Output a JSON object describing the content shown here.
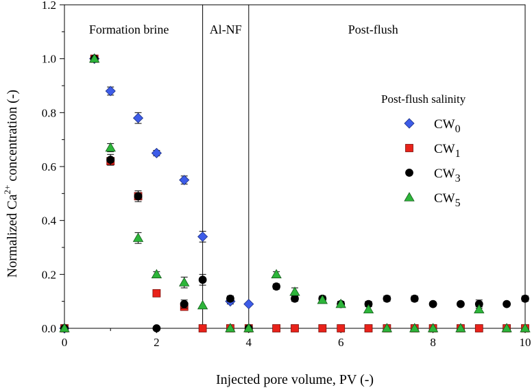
{
  "chart_data": {
    "type": "scatter",
    "title": "",
    "xlabel": "Injected pore volume, PV (-)",
    "ylabel": {
      "prefix": "Normalized Ca",
      "superscript": "2+",
      "suffix": " concentration (-)"
    },
    "xlim": [
      0,
      10
    ],
    "ylim": [
      0,
      1.2
    ],
    "xticks": [
      0,
      2,
      4,
      6,
      8,
      10
    ],
    "yticks": [
      0.0,
      0.2,
      0.4,
      0.6,
      0.8,
      1.0,
      1.2
    ],
    "ytick_labels": [
      "0.0",
      "0.2",
      "0.4",
      "0.6",
      "0.8",
      "1.0",
      "1.2"
    ],
    "region_dividers_pv": [
      3,
      4
    ],
    "regions": [
      {
        "label": "Formation brine",
        "x_center": 1.4
      },
      {
        "label": "Al-NF",
        "x_center": 3.5
      },
      {
        "label": "Post-flush",
        "x_center": 6.7
      }
    ],
    "legend": {
      "title": "Post-flush salinity",
      "position": "right-center"
    },
    "series": [
      {
        "name": "CW",
        "sub": "0",
        "marker": "diamond",
        "color": "#3d5ce8",
        "x": [
          0,
          0.65,
          1,
          1.6,
          2,
          2.6,
          3,
          3.6,
          4
        ],
        "y": [
          0,
          1.0,
          0.88,
          0.78,
          0.65,
          0.55,
          0.34,
          0.1,
          0.09
        ],
        "err": [
          0,
          0,
          0.015,
          0.02,
          0.01,
          0.015,
          0.02,
          0.01,
          0
        ]
      },
      {
        "name": "CW",
        "sub": "1",
        "marker": "square",
        "color": "#e8221a",
        "x": [
          0,
          0.65,
          1,
          1.6,
          2,
          2.6,
          3,
          3.6,
          4,
          4.6,
          5,
          5.6,
          6,
          6.6,
          7,
          7.6,
          8,
          8.6,
          9,
          9.6,
          10
        ],
        "y": [
          0,
          1.0,
          0.62,
          0.49,
          0.13,
          0.08,
          0,
          0,
          0,
          0,
          0,
          0,
          0,
          0,
          0,
          0,
          0,
          0,
          0,
          0,
          0
        ],
        "err": [
          0,
          0,
          0,
          0,
          0,
          0,
          0,
          0,
          0,
          0,
          0,
          0,
          0,
          0,
          0,
          0,
          0,
          0,
          0,
          0,
          0
        ]
      },
      {
        "name": "CW",
        "sub": "3",
        "marker": "circle",
        "color": "#000000",
        "x": [
          0,
          0.65,
          1,
          1.6,
          2,
          2.6,
          3,
          3.6,
          4,
          4.6,
          5,
          5.6,
          6,
          6.6,
          7,
          7.6,
          8,
          8.6,
          9,
          9.6,
          10
        ],
        "y": [
          0,
          1.0,
          0.625,
          0.49,
          0,
          0.09,
          0.18,
          0.11,
          0,
          0.155,
          0.11,
          0.11,
          0.09,
          0.09,
          0.11,
          0.11,
          0.09,
          0.09,
          0.09,
          0.09,
          0.11
        ],
        "err": [
          0,
          0,
          0.02,
          0.02,
          0,
          0.015,
          0.02,
          0.01,
          0,
          0.01,
          0.01,
          0.01,
          0.01,
          0.01,
          0.01,
          0.01,
          0,
          0,
          0.015,
          0,
          0.01
        ]
      },
      {
        "name": "CW",
        "sub": "5",
        "marker": "triangle",
        "color": "#2db53a",
        "x": [
          0,
          0.65,
          1,
          1.6,
          2,
          2.6,
          3,
          3.6,
          4,
          4.6,
          5,
          5.6,
          6,
          6.6,
          7,
          7.6,
          8,
          8.6,
          9,
          9.6,
          10
        ],
        "y": [
          0,
          1.0,
          0.67,
          0.335,
          0.2,
          0.17,
          0.085,
          0,
          0,
          0.2,
          0.135,
          0.105,
          0.09,
          0.07,
          0,
          0,
          0,
          0,
          0.07,
          0,
          0
        ],
        "err": [
          0,
          0,
          0.015,
          0.02,
          0.01,
          0.02,
          0,
          0,
          0,
          0.01,
          0.015,
          0.01,
          0.01,
          0.01,
          0,
          0,
          0,
          0,
          0.01,
          0,
          0
        ]
      }
    ]
  }
}
